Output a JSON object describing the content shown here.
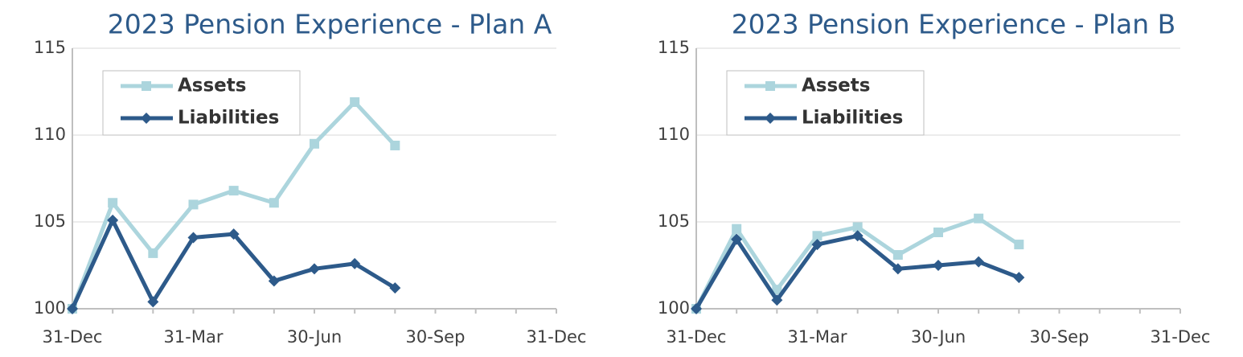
{
  "chart_data": [
    {
      "type": "line",
      "title": "2023 Pension Experience - Plan A",
      "categories": [
        "31-Dec",
        null,
        null,
        "31-Mar",
        null,
        null,
        "30-Jun",
        null,
        null,
        "30-Sep",
        null,
        null,
        "31-Dec"
      ],
      "series": [
        {
          "name": "Assets",
          "color": "#acd5dd",
          "marker": "square",
          "values": [
            100,
            106.1,
            103.2,
            106.0,
            106.8,
            106.1,
            109.5,
            111.9,
            109.4,
            null,
            null,
            null,
            null
          ]
        },
        {
          "name": "Liabilities",
          "color": "#2d5a8a",
          "marker": "diamond",
          "values": [
            100,
            105.1,
            100.4,
            104.1,
            104.3,
            101.6,
            102.3,
            102.6,
            101.2,
            null,
            null,
            null,
            null
          ]
        }
      ],
      "ylim": [
        100,
        115
      ],
      "yticks": [
        100,
        105,
        110,
        115
      ],
      "grid": true,
      "legend": "upper left"
    },
    {
      "type": "line",
      "title": "2023 Pension Experience - Plan B",
      "categories": [
        "31-Dec",
        null,
        null,
        "31-Mar",
        null,
        null,
        "30-Jun",
        null,
        null,
        "30-Sep",
        null,
        null,
        "31-Dec"
      ],
      "series": [
        {
          "name": "Assets",
          "color": "#acd5dd",
          "marker": "square",
          "values": [
            100,
            104.6,
            101.1,
            104.2,
            104.7,
            103.1,
            104.4,
            105.2,
            103.7,
            null,
            null,
            null,
            null
          ]
        },
        {
          "name": "Liabilities",
          "color": "#2d5a8a",
          "marker": "diamond",
          "values": [
            100,
            104.0,
            100.5,
            103.7,
            104.2,
            102.3,
            102.5,
            102.7,
            101.8,
            null,
            null,
            null,
            null
          ]
        }
      ],
      "ylim": [
        100,
        115
      ],
      "yticks": [
        100,
        105,
        110,
        115
      ],
      "grid": true,
      "legend": "upper left"
    }
  ]
}
